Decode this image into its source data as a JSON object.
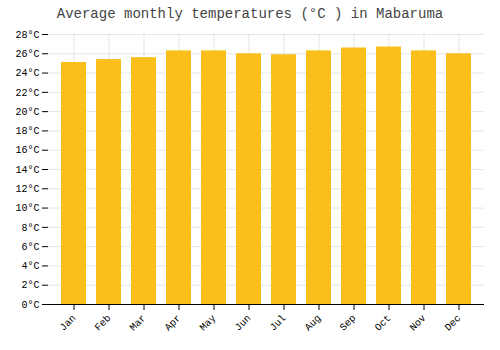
{
  "chart_data": {
    "type": "bar",
    "title": "Average monthly temperatures (°C ) in Mabaruma",
    "categories": [
      "Jan",
      "Feb",
      "Mar",
      "Apr",
      "May",
      "Jun",
      "Jul",
      "Aug",
      "Sep",
      "Oct",
      "Nov",
      "Dec"
    ],
    "values": [
      25.1,
      25.4,
      25.6,
      26.3,
      26.3,
      26.0,
      25.9,
      26.3,
      26.6,
      26.7,
      26.3,
      26.0
    ],
    "color": "#FABF1A",
    "ylim": [
      0,
      28
    ],
    "yticks": [
      {
        "value": 0,
        "label": "0°C"
      },
      {
        "value": 2,
        "label": "2°C"
      },
      {
        "value": 4,
        "label": "4°C"
      },
      {
        "value": 6,
        "label": "6°C"
      },
      {
        "value": 8,
        "label": "8°C"
      },
      {
        "value": 10,
        "label": "10°C"
      },
      {
        "value": 12,
        "label": "12°C"
      },
      {
        "value": 14,
        "label": "14°C"
      },
      {
        "value": 16,
        "label": "16°C"
      },
      {
        "value": 18,
        "label": "18°C"
      },
      {
        "value": 20,
        "label": "20°C"
      },
      {
        "value": 22,
        "label": "22°C"
      },
      {
        "value": 24,
        "label": "24°C"
      },
      {
        "value": 26,
        "label": "26°C"
      },
      {
        "value": 28,
        "label": "28°C"
      }
    ],
    "grid": true
  }
}
